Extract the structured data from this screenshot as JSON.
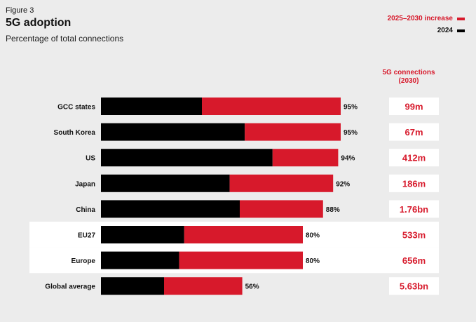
{
  "figure_label": "Figure 3",
  "title": "5G adoption",
  "subtitle": "Percentage of total connections",
  "legend": [
    {
      "label": "2025–2030 increase",
      "color": "#d7192b"
    },
    {
      "label": "2024",
      "color": "#000000"
    }
  ],
  "connections_header": [
    "5G connections",
    "(2030)"
  ],
  "colors": {
    "base": "#000000",
    "increase": "#d7192b",
    "accent_text": "#d7192b",
    "highlight_rows": "#ffffff",
    "background": "#ececec"
  },
  "chart_data": {
    "type": "bar",
    "orientation": "horizontal",
    "stacked": true,
    "categories": [
      "GCC states",
      "South Korea",
      "US",
      "Japan",
      "China",
      "EU27",
      "Europe",
      "Global average"
    ],
    "series": [
      {
        "name": "2024",
        "values": [
          40,
          57,
          68,
          51,
          55,
          33,
          31,
          25
        ]
      },
      {
        "name": "2025–2030 increase",
        "values": [
          55,
          38,
          26,
          41,
          33,
          47,
          49,
          31
        ]
      }
    ],
    "totals": [
      95,
      95,
      94,
      92,
      88,
      80,
      80,
      56
    ],
    "total_labels": [
      "95%",
      "95%",
      "94%",
      "92%",
      "88%",
      "80%",
      "80%",
      "56%"
    ],
    "connections_2030": [
      "99m",
      "67m",
      "412m",
      "186m",
      "1.76bn",
      "533m",
      "656m",
      "5.63bn"
    ],
    "highlighted_categories": [
      "EU27",
      "Europe"
    ],
    "xlim": [
      0,
      100
    ],
    "grid": false,
    "legend_position": "top-right"
  }
}
